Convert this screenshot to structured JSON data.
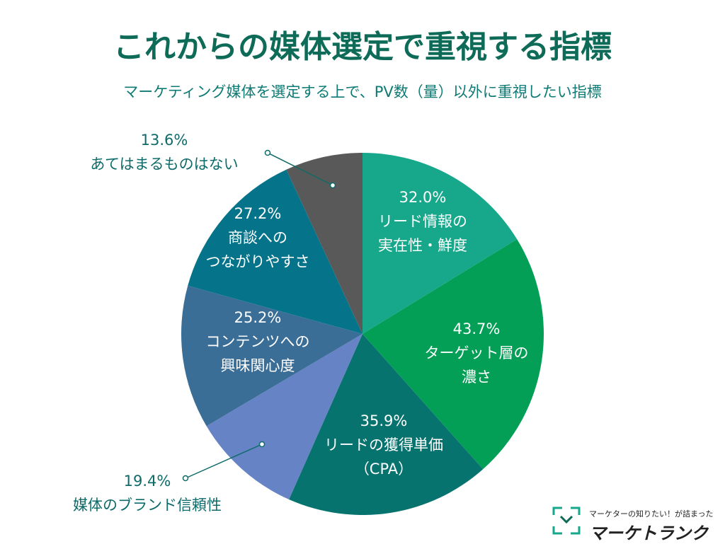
{
  "chart_data": {
    "type": "pie",
    "title": "これからの媒体選定で重視する指標",
    "subtitle": "マーケティング媒体を選定する上で、PV数（量）以外に重視したい指標",
    "categories": [
      "リード情報の\n実在性・鮮度",
      "ターゲット層の\n濃さ",
      "リードの獲得単価\n（CPA）",
      "媒体のブランド信頼性",
      "コンテンツへの\n興味関心度",
      "商談への\nつながりやすさ",
      "あてはまるものはない"
    ],
    "values": [
      32.0,
      43.7,
      35.9,
      19.4,
      25.2,
      27.2,
      13.6
    ],
    "value_labels": [
      "32.0%",
      "43.7%",
      "35.9%",
      "19.4%",
      "25.2%",
      "27.2%",
      "13.6%"
    ],
    "colors": [
      "#17a88b",
      "#049f56",
      "#07736f",
      "#6683c5",
      "#3b6e96",
      "#05748a",
      "#595959"
    ]
  },
  "logo": {
    "tagline": "マーケターの知りたい！が詰まった",
    "name": "マーケトランク"
  }
}
